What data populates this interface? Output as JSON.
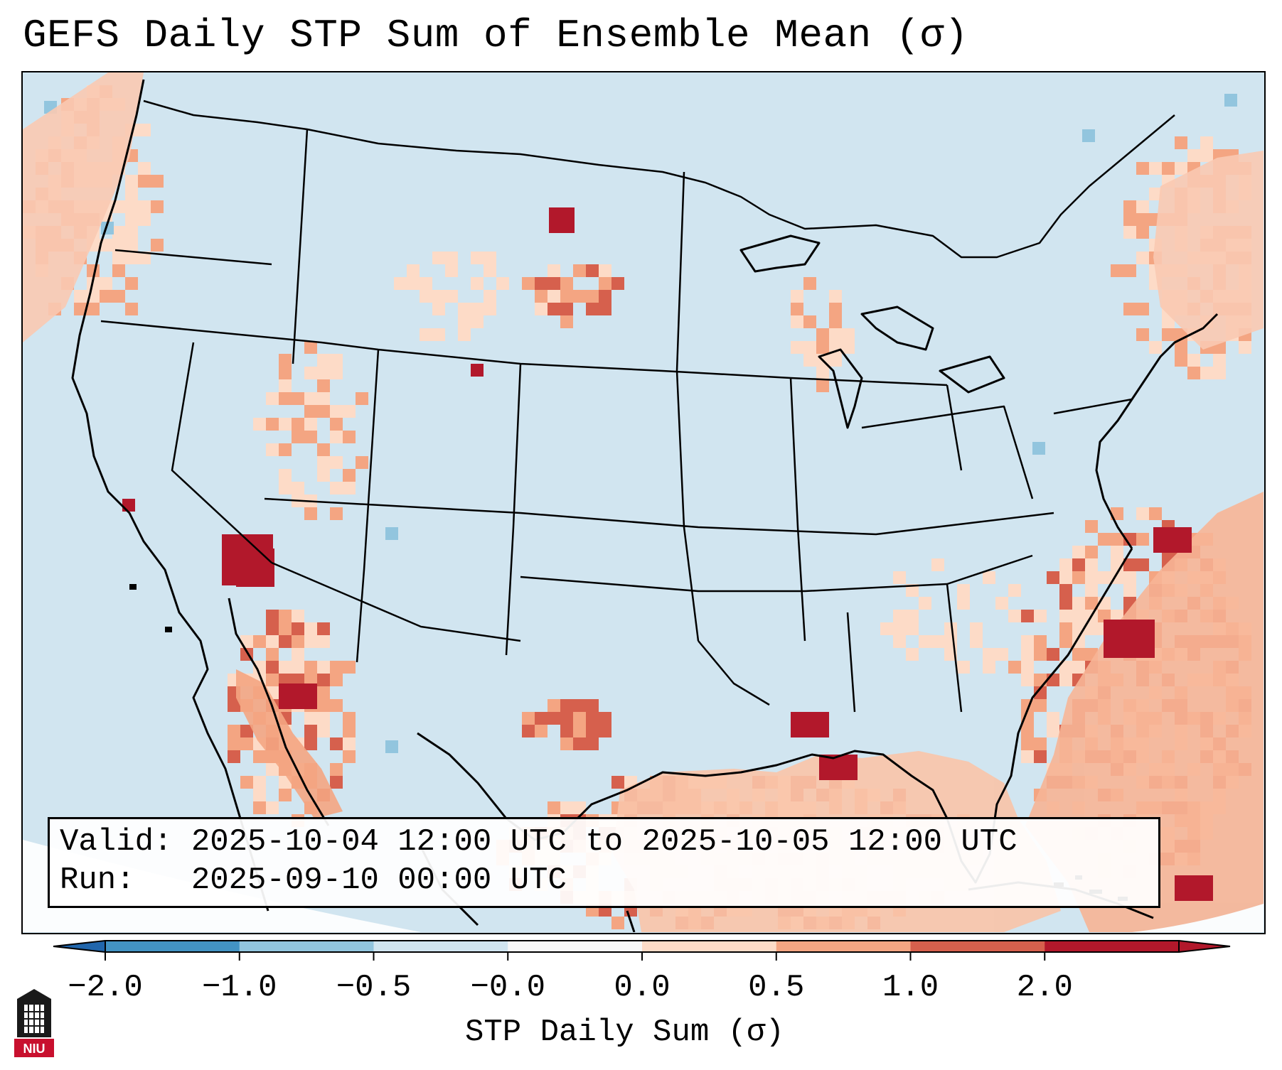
{
  "title": "GEFS Daily STP Sum of Ensemble Mean (σ)",
  "info": {
    "valid_line": "Valid: 2025-10-04 12:00 UTC to 2025-10-05 12:00 UTC",
    "run_line": "Run:   2025-09-10 00:00 UTC"
  },
  "colorbar": {
    "label": "STP Daily Sum (σ)",
    "ticks": [
      "−2.0",
      "−1.0",
      "−0.5",
      "−0.0",
      "0.0",
      "0.5",
      "1.0",
      "2.0"
    ],
    "colors": [
      "#4393c3",
      "#92c5de",
      "#d1e5f0",
      "#f7f7f7",
      "#fddbc7",
      "#f4a582",
      "#d6604d",
      "#b2182b"
    ],
    "extend_min_color": "#2166ac",
    "extend_max_color": "#b2182b"
  },
  "logo": {
    "text": "NIU",
    "accent": "#c8102e"
  },
  "chart_data": {
    "type": "heatmap",
    "title": "GEFS Daily STP Sum of Ensemble Mean (σ)",
    "variable": "STP Daily Sum (σ)",
    "color_levels": [
      -2.0,
      -1.0,
      -0.5,
      -0.0,
      0.0,
      0.5,
      1.0,
      2.0
    ],
    "regions": [
      {
        "area": "Gulf of Mexico",
        "category": "0.5 to 2.0"
      },
      {
        "area": "Western Atlantic off Southeast US",
        "category": "0.5 to 2.0"
      },
      {
        "area": "Gulf of California / Baja",
        "category": "0.5 to 2.0"
      },
      {
        "area": "Lower Colorado River (AZ/CA border)",
        "category": ">2.0"
      },
      {
        "area": "Western North Dakota",
        "category": "1.0 to 2.0"
      },
      {
        "area": "Pacific Northwest coast",
        "category": "0.0 to 1.0"
      },
      {
        "area": "Northeastern Canada / Maine",
        "category": "0.0 to 1.0"
      }
    ]
  }
}
